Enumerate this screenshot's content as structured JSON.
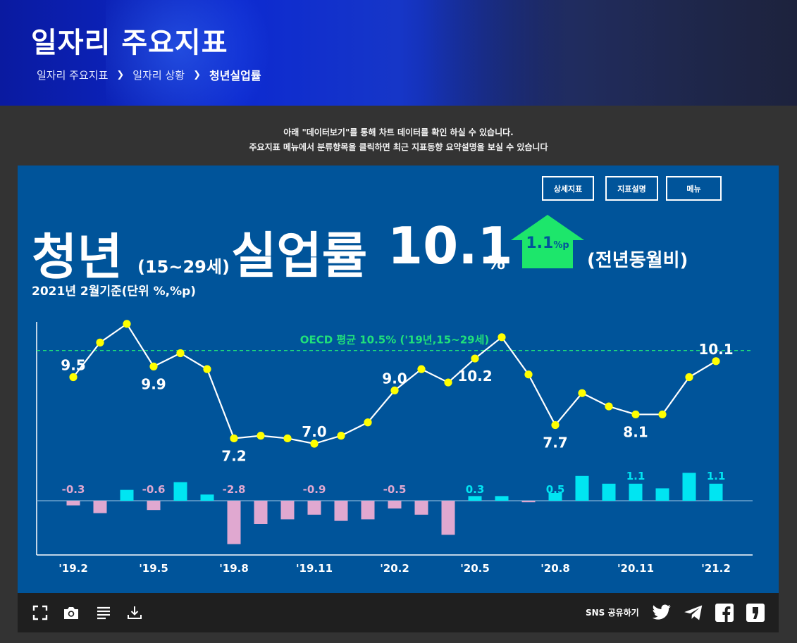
{
  "header": {
    "title": "일자리 주요지표",
    "breadcrumb": [
      "일자리 주요지표",
      "일자리 상황",
      "청년실업률"
    ]
  },
  "notice": {
    "line1": "아래 \"데이터보기\"를 통해 차트 데이터를 확인 하실 수 있습니다.",
    "line2": "주요지표 메뉴에서 분류항목을 클릭하면 최근 지표동향 요약설명을 보실 수 있습니다"
  },
  "buttons": {
    "detail": "상세지표",
    "desc": "지표설명",
    "menu": "메뉴"
  },
  "headline": {
    "word1": "청년",
    "age": "(15~29세)",
    "word2": "실업률",
    "value": "10.1",
    "unit": "%",
    "change": "1.1",
    "change_unit": "%p",
    "compare": "(전년동월비)",
    "basis": "2021년 2월기준(단위 %,%p)"
  },
  "colors": {
    "panel": "#00549a",
    "line": "#ffffff",
    "point": "#ffff00",
    "positive_bar": "#00e5f2",
    "negative_bar": "#e0a8d0",
    "oecd": "#20e07a",
    "arrow": "#1de66b"
  },
  "chart_data": {
    "type": "line+bar",
    "x": [
      "'19.2",
      "'19.3",
      "'19.4",
      "'19.5",
      "'19.6",
      "'19.7",
      "'19.8",
      "'19.9",
      "'19.10",
      "'19.11",
      "'19.12",
      "'20.1",
      "'20.2",
      "'20.3",
      "'20.4",
      "'20.5",
      "'20.6",
      "'20.7",
      "'20.8",
      "'20.9",
      "'20.10",
      "'20.11",
      "'20.12",
      "'21.1",
      "'21.2"
    ],
    "tick_labels": [
      "'19.2",
      "'19.5",
      "'19.8",
      "'19.11",
      "'20.2",
      "'20.5",
      "'20.8",
      "'20.11",
      "'21.2"
    ],
    "rate": [
      9.5,
      10.8,
      11.5,
      9.9,
      10.4,
      9.8,
      7.2,
      7.3,
      7.2,
      7.0,
      7.3,
      7.8,
      9.0,
      9.8,
      9.3,
      10.2,
      11.0,
      9.6,
      7.7,
      8.9,
      8.4,
      8.1,
      8.1,
      9.5,
      10.1
    ],
    "rate_labels": [
      {
        "index": 0,
        "text": "9.5"
      },
      {
        "index": 3,
        "text": "9.9"
      },
      {
        "index": 6,
        "text": "7.2"
      },
      {
        "index": 9,
        "text": "7.0"
      },
      {
        "index": 12,
        "text": "9.0"
      },
      {
        "index": 15,
        "text": "10.2"
      },
      {
        "index": 18,
        "text": "7.7"
      },
      {
        "index": 21,
        "text": "8.1"
      },
      {
        "index": 24,
        "text": "10.1"
      }
    ],
    "change": [
      -0.3,
      -0.8,
      0.7,
      -0.6,
      1.2,
      0.4,
      -2.8,
      -1.5,
      -1.2,
      -0.9,
      -1.3,
      -1.2,
      -0.5,
      -0.9,
      -2.2,
      0.3,
      0.3,
      -0.1,
      0.5,
      1.6,
      1.1,
      1.1,
      0.8,
      1.8,
      1.1
    ],
    "change_labels": [
      {
        "index": 0,
        "text": "-0.3"
      },
      {
        "index": 3,
        "text": "-0.6"
      },
      {
        "index": 6,
        "text": "-2.8"
      },
      {
        "index": 9,
        "text": "-0.9"
      },
      {
        "index": 12,
        "text": "-0.5"
      },
      {
        "index": 15,
        "text": "0.3"
      },
      {
        "index": 18,
        "text": "0.5"
      },
      {
        "index": 21,
        "text": "1.1"
      },
      {
        "index": 24,
        "text": "1.1"
      }
    ],
    "oecd_average": 10.5,
    "oecd_label": "OECD 평균 10.5% ('19년,15~29세)"
  },
  "toolbar": {
    "icons": [
      "fullscreen-icon",
      "camera-icon",
      "list-icon",
      "download-icon"
    ],
    "sns_label": "SNS 공유하기",
    "sns_icons": [
      "twitter-icon",
      "telegram-icon",
      "facebook-icon",
      "kakaostory-icon"
    ]
  }
}
